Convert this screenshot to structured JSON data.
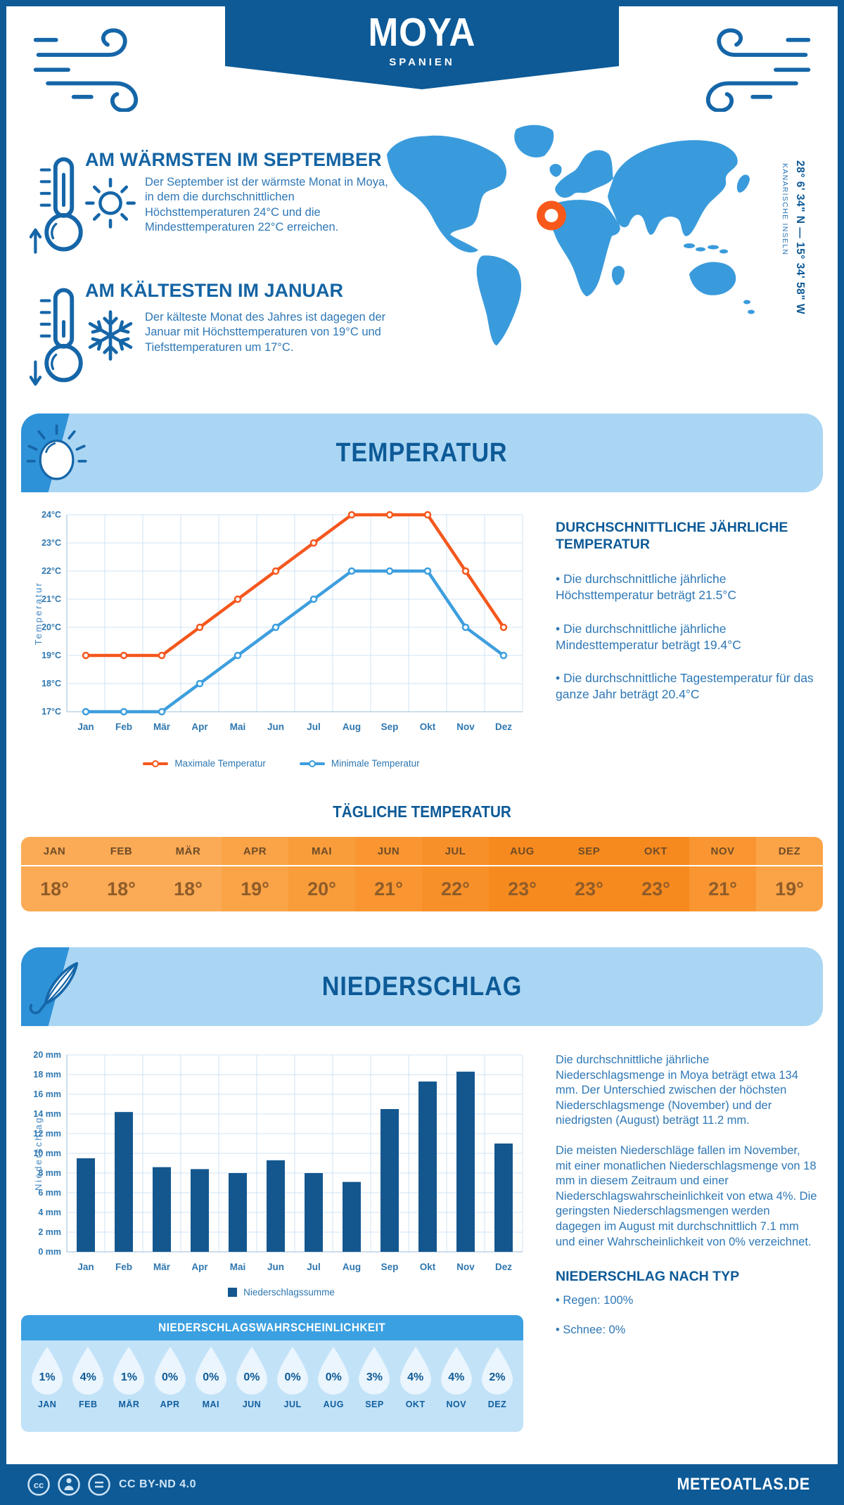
{
  "header": {
    "title": "MOYA",
    "subtitle": "SPANIEN"
  },
  "intro": {
    "warm": {
      "title": "AM WÄRMSTEN IM SEPTEMBER",
      "text": "Der September ist der wärmste Monat in Moya, in dem die durchschnittlichen Höchsttemperaturen 24°C und die Mindesttemperaturen 22°C erreichen."
    },
    "cold": {
      "title": "AM KÄLTESTEN IM JANUAR",
      "text": "Der kälteste Monat des Jahres ist dagegen der Januar mit Höchsttemperaturen von 19°C und Tiefsttemperaturen um 17°C."
    }
  },
  "map": {
    "coordinates": "28° 6' 34\" N — 15° 34' 58\" W",
    "region": "KANARISCHE INSELN",
    "land_color": "#3a9bdc",
    "marker_color": "#f8591b"
  },
  "temperature_section": {
    "banner": "TEMPERATUR",
    "summary_title": "DURCHSCHNITTLICHE JÄHRLICHE TEMPERATUR",
    "summary_bullets": [
      "• Die durchschnittliche jährliche Höchsttemperatur beträgt 21.5°C",
      "• Die durchschnittliche jährliche Mindesttemperatur beträgt 19.4°C",
      "• Die durchschnittliche Tagestemperatur für das ganze Jahr beträgt 20.4°C"
    ],
    "daily_title": "TÄGLICHE TEMPERATUR"
  },
  "precipitation_section": {
    "banner": "NIEDERSCHLAG",
    "paragraphs": [
      "Die durchschnittliche jährliche Niederschlagsmenge in Moya beträgt etwa 134 mm. Der Unterschied zwischen der höchsten Niederschlagsmenge (November) und der niedrigsten (August) beträgt 11.2 mm.",
      "Die meisten Niederschläge fallen im November, mit einer monatlichen Niederschlagsmenge von 18 mm in diesem Zeitraum und einer Niederschlagswahrscheinlichkeit von etwa 4%. Die geringsten Niederschlagsmengen werden dagegen im August mit durchschnittlich 7.1 mm und einer Wahrscheinlichkeit von 0% verzeichnet."
    ],
    "type_title": "NIEDERSCHLAG NACH TYP",
    "type_bullets": [
      "• Regen: 100%",
      "• Schnee: 0%"
    ],
    "probability_title": "NIEDERSCHLAGSWAHRSCHEINLICHKEIT"
  },
  "footer": {
    "license": "CC BY-ND 4.0",
    "site": "METEOATLAS.DE"
  },
  "chart_data": [
    {
      "id": "monthly-temperature",
      "type": "line",
      "title": "TEMPERATUR",
      "categories": [
        "Jan",
        "Feb",
        "Mär",
        "Apr",
        "Mai",
        "Jun",
        "Jul",
        "Aug",
        "Sep",
        "Okt",
        "Nov",
        "Dez"
      ],
      "ylabel": "Temperatur",
      "ylim": [
        17,
        24
      ],
      "y_tick_suffix": "°C",
      "grid": true,
      "legend_position": "bottom",
      "series": [
        {
          "name": "Maximale Temperatur",
          "color": "#f4571d",
          "values": [
            19,
            19,
            19,
            20,
            21,
            22,
            23,
            24,
            24,
            24,
            22,
            20
          ]
        },
        {
          "name": "Minimale Temperatur",
          "color": "#3d9ede",
          "values": [
            17,
            17,
            17,
            18,
            19,
            20,
            21,
            22,
            22,
            22,
            20,
            19
          ]
        }
      ]
    },
    {
      "id": "daily-temperature",
      "type": "table",
      "title": "TÄGLICHE TEMPERATUR",
      "categories": [
        "JAN",
        "FEB",
        "MÄR",
        "APR",
        "MAI",
        "JUN",
        "JUL",
        "AUG",
        "SEP",
        "OKT",
        "NOV",
        "DEZ"
      ],
      "values": [
        "18°",
        "18°",
        "18°",
        "19°",
        "20°",
        "21°",
        "22°",
        "23°",
        "23°",
        "23°",
        "21°",
        "19°"
      ],
      "cell_colors": [
        "#fbaa55",
        "#fbaa55",
        "#fbaa55",
        "#faa347",
        "#f99d3b",
        "#f99631",
        "#f8902a",
        "#f78a1e",
        "#f78a1e",
        "#f78a1e",
        "#f99631",
        "#faa347"
      ]
    },
    {
      "id": "monthly-precipitation",
      "type": "bar",
      "title": "NIEDERSCHLAG",
      "categories": [
        "Jan",
        "Feb",
        "Mär",
        "Apr",
        "Mai",
        "Jun",
        "Jul",
        "Aug",
        "Sep",
        "Okt",
        "Nov",
        "Dez"
      ],
      "values": [
        9.5,
        14.2,
        8.6,
        8.4,
        8.0,
        9.3,
        8.0,
        7.1,
        14.5,
        17.3,
        18.3,
        11.0
      ],
      "ylabel": "Niederschlag",
      "ylim": [
        0,
        20
      ],
      "y_tick_step": 2,
      "y_tick_suffix": " mm",
      "grid": true,
      "bar_color": "#14578f",
      "legend": "Niederschlagssumme"
    },
    {
      "id": "precipitation-probability",
      "type": "table",
      "title": "NIEDERSCHLAGSWAHRSCHEINLICHKEIT",
      "categories": [
        "JAN",
        "FEB",
        "MÄR",
        "APR",
        "MAI",
        "JUN",
        "JUL",
        "AUG",
        "SEP",
        "OKT",
        "NOV",
        "DEZ"
      ],
      "values": [
        "1%",
        "4%",
        "1%",
        "0%",
        "0%",
        "0%",
        "0%",
        "0%",
        "3%",
        "4%",
        "4%",
        "2%"
      ]
    }
  ]
}
